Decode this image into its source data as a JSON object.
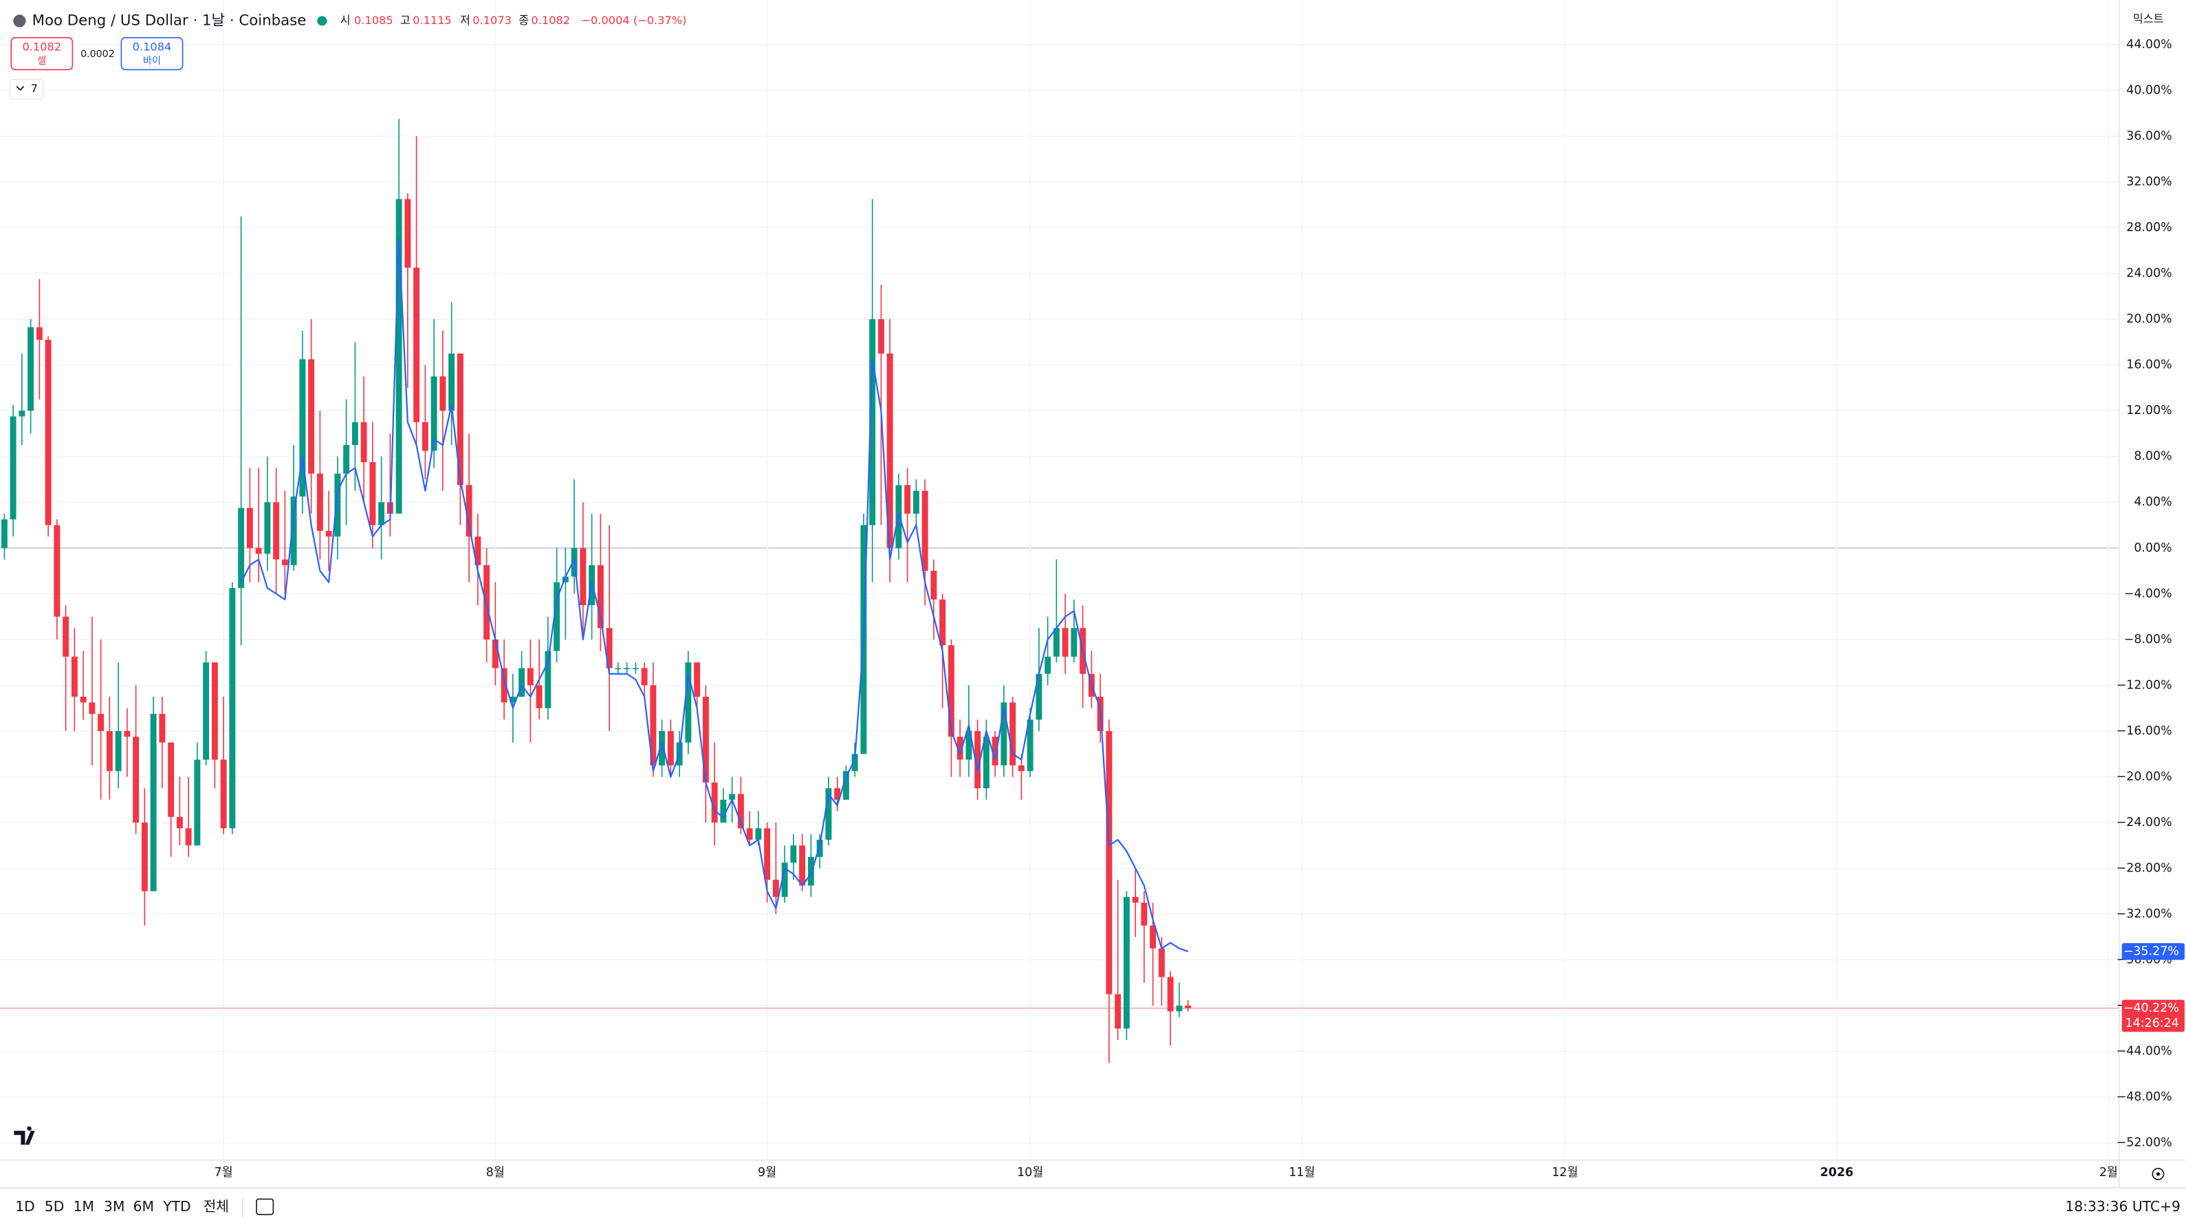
{
  "header": {
    "title": "Moo Deng / US Dollar · 1날 · Coinbase",
    "open_label": "시",
    "open": "0.1085",
    "high_label": "고",
    "high": "0.1115",
    "low_label": "저",
    "low": "0.1073",
    "close_label": "종",
    "close": "0.1082",
    "change": "−0.0004 (−0.37%)"
  },
  "trade": {
    "sell_price": "0.1082",
    "sell_label": "셀",
    "spread": "0.0002",
    "buy_price": "0.1084",
    "buy_label": "바이"
  },
  "indicators": {
    "count": "7"
  },
  "scale_mode": "믹스트",
  "toolbar": {
    "ranges": [
      "1D",
      "5D",
      "1M",
      "3M",
      "6M",
      "YTD",
      "전체"
    ],
    "clock": "18:33:36 UTC+9"
  },
  "chart_data": {
    "type": "candlestick",
    "up_color": "#089981",
    "down_color": "#f23645",
    "grid": true,
    "xlim": [
      -0.5,
      241.2
    ],
    "xticks": [
      {
        "value": 25,
        "label": "7월"
      },
      {
        "value": 56,
        "label": "8월"
      },
      {
        "value": 87,
        "label": "9월"
      },
      {
        "value": 117,
        "label": "10월"
      },
      {
        "value": 148,
        "label": "11월"
      },
      {
        "value": 178,
        "label": "12월"
      },
      {
        "value": 209,
        "label": "2026"
      },
      {
        "value": 240,
        "label": "2월"
      }
    ],
    "ylim": [
      -53.5,
      47.9
    ],
    "yticks": [
      {
        "value": 44,
        "label": "44.00%"
      },
      {
        "value": 40,
        "label": "40.00%"
      },
      {
        "value": 36,
        "label": "36.00%"
      },
      {
        "value": 32,
        "label": "32.00%"
      },
      {
        "value": 28,
        "label": "28.00%"
      },
      {
        "value": 24,
        "label": "24.00%"
      },
      {
        "value": 20,
        "label": "20.00%"
      },
      {
        "value": 16,
        "label": "16.00%"
      },
      {
        "value": 12,
        "label": "12.00%"
      },
      {
        "value": 8,
        "label": "8.00%"
      },
      {
        "value": 4,
        "label": "4.00%"
      },
      {
        "value": 0,
        "label": "0.00%"
      },
      {
        "value": -4,
        "label": "−4.00%"
      },
      {
        "value": -8,
        "label": "−8.00%"
      },
      {
        "value": -12,
        "label": "−12.00%"
      },
      {
        "value": -16,
        "label": "−16.00%"
      },
      {
        "value": -20,
        "label": "−20.00%"
      },
      {
        "value": -24,
        "label": "−24.00%"
      },
      {
        "value": -28,
        "label": "−28.00%"
      },
      {
        "value": -32,
        "label": "−32.00%"
      },
      {
        "value": -36,
        "label": "−36.00%"
      },
      {
        "value": -40,
        "label": "−40.00%"
      },
      {
        "value": -44,
        "label": "−44.00%"
      },
      {
        "value": -48,
        "label": "−48.00%"
      },
      {
        "value": -52,
        "label": "−52.00%"
      }
    ],
    "open": [
      0,
      2.5,
      11.5,
      12,
      19.3,
      18.2,
      2,
      -6,
      -9.5,
      -13,
      -13.5,
      -14.5,
      -16,
      -19.5,
      -16,
      -16.5,
      -24,
      -30,
      -14.5,
      -17,
      -23.5,
      -24.5,
      -26,
      -18.5,
      -10,
      -18.5,
      -24.5,
      -3.5,
      3.5,
      0,
      -0.5,
      4,
      -1,
      -1.5,
      4.5,
      16.5,
      6.5,
      1.5,
      1,
      6.5,
      9,
      11,
      7.5,
      2,
      4,
      3,
      30.5,
      24.5,
      11,
      8.5,
      15,
      12,
      17,
      5.5,
      1,
      -1.5,
      -8,
      -10.5,
      -13.5,
      -13,
      -10.5,
      -12,
      -14,
      -9,
      -3,
      -2.5,
      0,
      -5,
      -1.5,
      -7,
      -10.5,
      -10.5,
      -10.5,
      -10.5,
      -12,
      -19,
      -16,
      -19,
      -17,
      -10,
      -13,
      -20.5,
      -24,
      -22,
      -21.5,
      -24.5,
      -25.5,
      -24.5,
      -29,
      -30.5,
      -27.5,
      -26,
      -29.5,
      -27,
      -25.5,
      -21,
      -22,
      -19.5,
      -18,
      2,
      20,
      17,
      0,
      5.5,
      3,
      5,
      -2,
      -4.5,
      -8.5,
      -16.5,
      -18.5,
      -16,
      -21,
      -16.5,
      -19,
      -13.5,
      -19,
      -19.5,
      -15,
      -11,
      -9.5,
      -7,
      -9.5,
      -7,
      -11,
      -13,
      -16,
      -39,
      -42,
      -30.5,
      -31,
      -33,
      -35,
      -37.5,
      -40.5,
      -40
    ],
    "high": [
      3,
      12.5,
      17,
      20,
      23.5,
      18.5,
      2.5,
      -5,
      -7,
      -9,
      -6,
      -8,
      -13,
      -10,
      -14,
      -12,
      -21,
      -13,
      -13,
      -17,
      -20,
      -20,
      -17,
      -9,
      -10,
      -13,
      -3,
      29,
      7,
      7,
      8,
      7,
      5,
      9,
      19,
      20,
      12,
      5,
      8,
      13,
      18,
      15,
      11,
      8,
      10,
      37.5,
      31,
      36,
      16,
      20,
      19,
      21.5,
      17,
      10,
      3,
      0,
      -3,
      -8,
      -11,
      -9,
      -8,
      -8,
      -6,
      0,
      0,
      6,
      4,
      3,
      3,
      2,
      -10,
      -10,
      -10,
      -10,
      -10,
      -15,
      -15,
      -16,
      -9,
      -10,
      -12,
      -17,
      -21,
      -20,
      -20,
      -23,
      -23,
      -24,
      -24,
      -26,
      -25,
      -25,
      -25,
      -25,
      -20,
      -20,
      -19,
      -17,
      3,
      30.5,
      23,
      20,
      6.5,
      7,
      6,
      6,
      -1,
      -4,
      -8,
      -15,
      -12,
      -15,
      -15,
      -16,
      -12,
      -13,
      -18,
      -14,
      -7,
      -6,
      -1,
      -4,
      -4.5,
      -5,
      -9,
      -11,
      -15,
      -29,
      -30,
      -28,
      -30,
      -31,
      -34,
      -37,
      -38,
      -39.5
    ],
    "low": [
      -1,
      1,
      9,
      10,
      13,
      1,
      -8,
      -16,
      -16,
      -15,
      -19,
      -22,
      -22,
      -21,
      -20,
      -25,
      -33,
      -30,
      -21,
      -27,
      -26,
      -27,
      -26,
      -19,
      -21,
      -25,
      -25,
      -8.5,
      -3,
      -3,
      -2,
      -4,
      -4,
      -2,
      3,
      3,
      -1,
      -2,
      -1,
      2,
      5,
      4,
      0,
      -1,
      1,
      3,
      14,
      9,
      6,
      7,
      5,
      9,
      2,
      -3,
      -5,
      -10,
      -12,
      -15,
      -17,
      -13,
      -17,
      -15,
      -15,
      -10,
      -8,
      -4,
      -8,
      -8,
      -9,
      -16,
      -11,
      -11,
      -11,
      -13,
      -20,
      -20,
      -20,
      -20,
      -18,
      -14,
      -24,
      -26,
      -24,
      -24,
      -25,
      -26,
      -26,
      -31,
      -32,
      -31,
      -29,
      -30,
      -30.5,
      -28,
      -26,
      -23,
      -22,
      -20,
      -18,
      -3,
      2,
      -3,
      -1,
      -3,
      2,
      -5,
      -8,
      -14,
      -20,
      -20,
      -20,
      -22,
      -22,
      -20,
      -20,
      -20,
      -22,
      -20,
      -16,
      -12,
      -10,
      -11,
      -10,
      -14,
      -14,
      -17,
      -45,
      -43,
      -43,
      -34,
      -38,
      -40,
      -40,
      -43.5,
      -41,
      -40.5
    ],
    "close": [
      2.5,
      11.5,
      12,
      19.3,
      18.2,
      2,
      -6,
      -9.5,
      -13,
      -13.5,
      -14.5,
      -16,
      -19.5,
      -16,
      -16.5,
      -24,
      -30,
      -14.5,
      -17,
      -23.5,
      -24.5,
      -26,
      -18.5,
      -10,
      -18.5,
      -24.5,
      -3.5,
      3.5,
      0,
      -0.5,
      4,
      -1,
      -1.5,
      4.5,
      16.5,
      6.5,
      1.5,
      1,
      6.5,
      9,
      11,
      7.5,
      2,
      4,
      3,
      30.5,
      24.5,
      11,
      8.5,
      15,
      12,
      17,
      5.5,
      1,
      -1.5,
      -8,
      -10.5,
      -13.5,
      -13,
      -10.5,
      -12,
      -14,
      -9,
      -3,
      -2.5,
      0,
      -5,
      -1.5,
      -7,
      -10.5,
      -10.5,
      -10.5,
      -10.5,
      -12,
      -19,
      -16,
      -19,
      -17,
      -10,
      -13,
      -20.5,
      -24,
      -22,
      -21.5,
      -24.5,
      -25.5,
      -24.5,
      -29,
      -30.5,
      -27.5,
      -26,
      -29.5,
      -27,
      -25.5,
      -21,
      -22,
      -19.5,
      -18,
      2,
      20,
      17,
      0,
      5.5,
      3,
      5,
      -2,
      -4.5,
      -8.5,
      -16.5,
      -18.5,
      -16,
      -21,
      -16.5,
      -19,
      -13.5,
      -19,
      -19.5,
      -15,
      -11,
      -9.5,
      -7,
      -9.5,
      -7,
      -11,
      -13,
      -16,
      -39,
      -42,
      -30.5,
      -31,
      -33,
      -35,
      -37.5,
      -40.5,
      -40,
      -40.22
    ],
    "line": {
      "color": "#2962ff",
      "values": [
        null,
        null,
        null,
        null,
        null,
        null,
        null,
        null,
        null,
        null,
        null,
        null,
        null,
        null,
        null,
        null,
        null,
        null,
        null,
        null,
        null,
        null,
        null,
        null,
        null,
        null,
        null,
        -3,
        -1.5,
        -1,
        -3.5,
        -4,
        -4.5,
        3,
        8,
        2,
        -2,
        -3,
        5,
        6.5,
        7,
        4,
        1,
        2,
        2.5,
        27,
        11,
        9,
        5,
        9.5,
        9,
        12.5,
        6,
        2,
        -2,
        -5,
        -8,
        -11.5,
        -14,
        -12,
        -13,
        -11.5,
        -10,
        -4.5,
        -2.5,
        -1,
        -8,
        -3,
        -6,
        -11,
        -11,
        -11,
        -11.5,
        -13,
        -19.5,
        -17,
        -20,
        -18,
        -11,
        -14,
        -20.5,
        -23,
        -23.5,
        -22,
        -24,
        -26,
        -25.5,
        -30,
        -31.5,
        -28,
        -28.5,
        -29.5,
        -28.5,
        -26,
        -21.5,
        -22.5,
        -20,
        -18.5,
        -8,
        16.5,
        12,
        -1,
        3,
        0.5,
        2,
        -3,
        -6,
        -9,
        -16,
        -18,
        -15.5,
        -19.5,
        -16,
        -18.5,
        -14,
        -18,
        -18.5,
        -14.5,
        -11,
        -8,
        -7,
        -6,
        -5.5,
        -9,
        -12,
        -14,
        -26,
        -25.5,
        -26.5,
        -28,
        -29.5,
        -32.5,
        -35,
        -34.5,
        -35,
        -35.27
      ]
    },
    "compare_label": {
      "value": -35.27,
      "label": "−35.27%"
    },
    "last_label": {
      "value": -40.22,
      "label": "−40.22%"
    },
    "countdown": "14:26:24"
  }
}
